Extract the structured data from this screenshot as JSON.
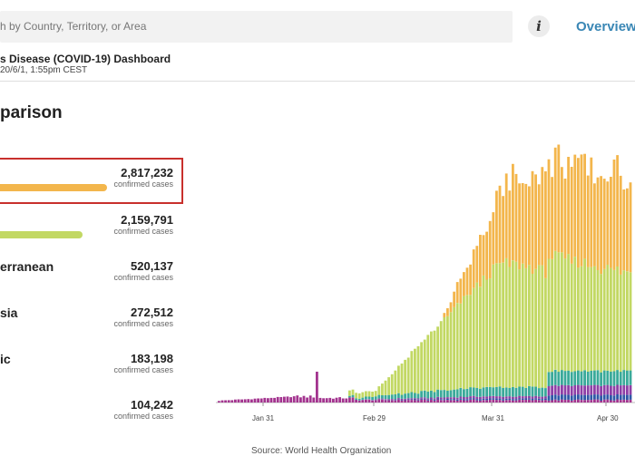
{
  "search": {
    "placeholder": "h by Country, Territory, or Area"
  },
  "info_icon": "info-icon",
  "nav": {
    "overview_label": "Overview"
  },
  "dashboard": {
    "title": "s Disease (COVID-19) Dashboard",
    "updated": "20/6/1, 1:55pm CEST"
  },
  "comparison": {
    "title": "parison",
    "unit": "confirmed cases",
    "regions": [
      {
        "name": "",
        "value": "2,817,232",
        "bar_color": "#f3b64c",
        "share": 1.0
      },
      {
        "name": "",
        "value": "2,159,791",
        "bar_color": "#c2d863",
        "share": 0.77
      },
      {
        "name": "erranean",
        "value": "520,137",
        "bar_color": "",
        "share": 0
      },
      {
        "name": "sia",
        "value": "272,512",
        "bar_color": "",
        "share": 0
      },
      {
        "name": "ic",
        "value": "183,198",
        "bar_color": "",
        "share": 0
      },
      {
        "name": "",
        "value": "104,242",
        "bar_color": "",
        "share": 0
      }
    ]
  },
  "chart_data": {
    "type": "bar",
    "stacked": true,
    "x_ticks": [
      "Jan 31",
      "Feb 29",
      "Mar 31",
      "Apr 30"
    ],
    "colors": {
      "americas": "#f3b64c",
      "europe": "#c2d863",
      "mediterranean": "#3aaa9a",
      "south_east_asia": "#8e3fa6",
      "africa": "#2e57a6",
      "western_pacific": "#a3348f"
    },
    "ylim": [
      0,
      130000
    ],
    "grid": false
  },
  "source": "Source: World Health Organization"
}
